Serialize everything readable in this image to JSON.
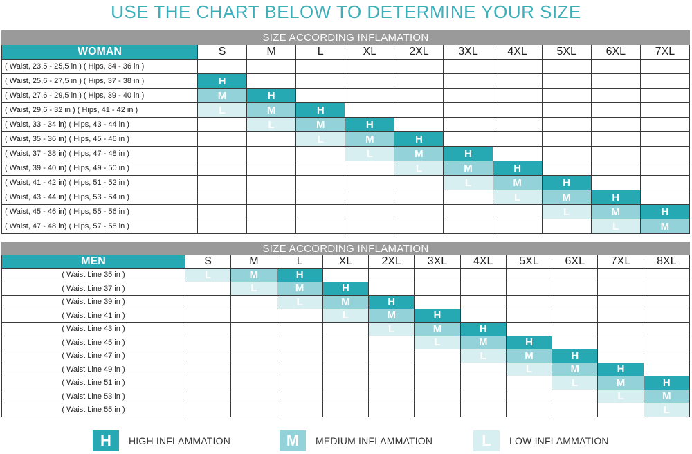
{
  "title": "USE THE CHART BELOW TO DETERMINE YOUR SIZE",
  "colors": {
    "accent": "#27a9b4",
    "high": "#27a9b4",
    "medium": "#93d2d8",
    "low": "#d8eff2",
    "banner": "#9a9a9a"
  },
  "woman": {
    "banner": "SIZE ACCORDING  INFLAMATION",
    "label": "WOMAN",
    "sizes": [
      "S",
      "M",
      "L",
      "XL",
      "2XL",
      "3XL",
      "4XL",
      "5XL",
      "6XL",
      "7XL"
    ],
    "rows": [
      {
        "label": "( Waist, 23,5 - 25,5 in )  ( Hips, 34 - 36 in )",
        "cells": [
          "",
          "",
          "",
          "",
          "",
          "",
          "",
          "",
          "",
          ""
        ]
      },
      {
        "label": "( Waist, 25,6 - 27,5 in )  ( Hips, 37 - 38 in )",
        "cells": [
          "H",
          "",
          "",
          "",
          "",
          "",
          "",
          "",
          "",
          ""
        ]
      },
      {
        "label": "( Waist, 27,6 - 29,5 in )  ( Hips, 39 - 40 in )",
        "cells": [
          "M",
          "H",
          "",
          "",
          "",
          "",
          "",
          "",
          "",
          ""
        ]
      },
      {
        "label": "( Waist, 29,6 - 32    in )  ( Hips, 41 - 42 in )",
        "cells": [
          "L",
          "M",
          "H",
          "",
          "",
          "",
          "",
          "",
          "",
          ""
        ]
      },
      {
        "label": "( Waist, 33  -  34      in)  ( Hips, 43 - 44 in )",
        "cells": [
          "",
          "L",
          "M",
          "H",
          "",
          "",
          "",
          "",
          "",
          ""
        ]
      },
      {
        "label": "( Waist, 35  -  36      in)  ( Hips, 45 - 46 in )",
        "cells": [
          "",
          "",
          "L",
          "M",
          "H",
          "",
          "",
          "",
          "",
          ""
        ]
      },
      {
        "label": "( Waist, 37  -  38      in)  ( Hips, 47 - 48 in )",
        "cells": [
          "",
          "",
          "",
          "L",
          "M",
          "H",
          "",
          "",
          "",
          ""
        ]
      },
      {
        "label": "( Waist, 39  -  40      in)  ( Hips, 49 - 50 in )",
        "cells": [
          "",
          "",
          "",
          "",
          "L",
          "M",
          "H",
          "",
          "",
          ""
        ]
      },
      {
        "label": "( Waist, 41  -  42      in)  ( Hips, 51 - 52 in )",
        "cells": [
          "",
          "",
          "",
          "",
          "",
          "L",
          "M",
          "H",
          "",
          ""
        ]
      },
      {
        "label": "( Waist, 43  -  44      in)  ( Hips, 53 - 54 in )",
        "cells": [
          "",
          "",
          "",
          "",
          "",
          "",
          "L",
          "M",
          "H",
          ""
        ]
      },
      {
        "label": "( Waist, 45  -  46      in)  ( Hips, 55 - 56 in )",
        "cells": [
          "",
          "",
          "",
          "",
          "",
          "",
          "",
          "L",
          "M",
          "H"
        ]
      },
      {
        "label": "( Waist, 47  -  48      in)  ( Hips, 57 - 58 in )",
        "cells": [
          "",
          "",
          "",
          "",
          "",
          "",
          "",
          "",
          "L",
          "M"
        ]
      }
    ]
  },
  "men": {
    "banner": "SIZE ACCORDING  INFLAMATION",
    "label": "MEN",
    "sizes": [
      "S",
      "M",
      "L",
      "XL",
      "2XL",
      "3XL",
      "4XL",
      "5XL",
      "6XL",
      "7XL",
      "8XL"
    ],
    "rows": [
      {
        "label": "( Waist Line  35 in )",
        "cells": [
          "L",
          "M",
          "H",
          "",
          "",
          "",
          "",
          "",
          "",
          "",
          ""
        ]
      },
      {
        "label": "( Waist Line  37 in )",
        "cells": [
          "",
          "L",
          "M",
          "H",
          "",
          "",
          "",
          "",
          "",
          "",
          ""
        ]
      },
      {
        "label": "( Waist Line  39 in )",
        "cells": [
          "",
          "",
          "L",
          "M",
          "H",
          "",
          "",
          "",
          "",
          "",
          ""
        ]
      },
      {
        "label": "( Waist Line  41 in )",
        "cells": [
          "",
          "",
          "",
          "L",
          "M",
          "H",
          "",
          "",
          "",
          "",
          ""
        ]
      },
      {
        "label": "( Waist Line  43 in )",
        "cells": [
          "",
          "",
          "",
          "",
          "L",
          "M",
          "H",
          "",
          "",
          "",
          ""
        ]
      },
      {
        "label": "( Waist Line  45 in )",
        "cells": [
          "",
          "",
          "",
          "",
          "",
          "L",
          "M",
          "H",
          "",
          "",
          ""
        ]
      },
      {
        "label": "( Waist Line  47 in )",
        "cells": [
          "",
          "",
          "",
          "",
          "",
          "",
          "L",
          "M",
          "H",
          "",
          ""
        ]
      },
      {
        "label": "( Waist Line  49 in )",
        "cells": [
          "",
          "",
          "",
          "",
          "",
          "",
          "",
          "L",
          "M",
          "H",
          ""
        ]
      },
      {
        "label": "( Waist Line  51 in )",
        "cells": [
          "",
          "",
          "",
          "",
          "",
          "",
          "",
          "",
          "L",
          "M",
          "H"
        ]
      },
      {
        "label": "( Waist Line  53 in )",
        "cells": [
          "",
          "",
          "",
          "",
          "",
          "",
          "",
          "",
          "",
          "L",
          "M"
        ]
      },
      {
        "label": "( Waist Line  55 in )",
        "cells": [
          "",
          "",
          "",
          "",
          "",
          "",
          "",
          "",
          "",
          "",
          "L"
        ]
      }
    ]
  },
  "legend": [
    {
      "letter": "H",
      "text": "HIGH INFLAMMATION",
      "level": "high"
    },
    {
      "letter": "M",
      "text": "MEDIUM INFLAMMATION",
      "level": "medium"
    },
    {
      "letter": "L",
      "text": "LOW INFLAMMATION",
      "level": "low"
    }
  ]
}
